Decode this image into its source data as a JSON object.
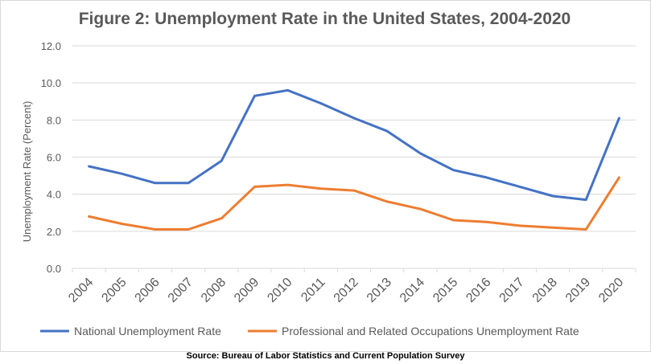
{
  "chart_data": {
    "type": "line",
    "title": "Figure 2: Unemployment Rate in the United States, 2004-2020",
    "xlabel": "",
    "ylabel": "Unemployment Rate (Percent)",
    "categories": [
      "2004",
      "2005",
      "2006",
      "2007",
      "2008",
      "2009",
      "2010",
      "2011",
      "2012",
      "2013",
      "2014",
      "2015",
      "2016",
      "2017",
      "2018",
      "2019",
      "2020"
    ],
    "ylim": [
      0,
      12
    ],
    "yticks": [
      "0.0",
      "2.0",
      "4.0",
      "6.0",
      "8.0",
      "10.0",
      "12.0"
    ],
    "grid": true,
    "legend_position": "bottom",
    "series": [
      {
        "name": "National Unemployment Rate",
        "color": "#4472c4",
        "values": [
          5.5,
          5.1,
          4.6,
          4.6,
          5.8,
          9.3,
          9.6,
          8.9,
          8.1,
          7.4,
          6.2,
          5.3,
          4.9,
          4.4,
          3.9,
          3.7,
          8.1
        ]
      },
      {
        "name": "Professional and Related Occupations Unemployment Rate",
        "color": "#ed7d31",
        "values": [
          2.8,
          2.4,
          2.1,
          2.1,
          2.7,
          4.4,
          4.5,
          4.3,
          4.2,
          3.6,
          3.2,
          2.6,
          2.5,
          2.3,
          2.2,
          2.1,
          4.9
        ]
      }
    ]
  },
  "source": "Source: Bureau of Labor Statistics and Current Population Survey"
}
